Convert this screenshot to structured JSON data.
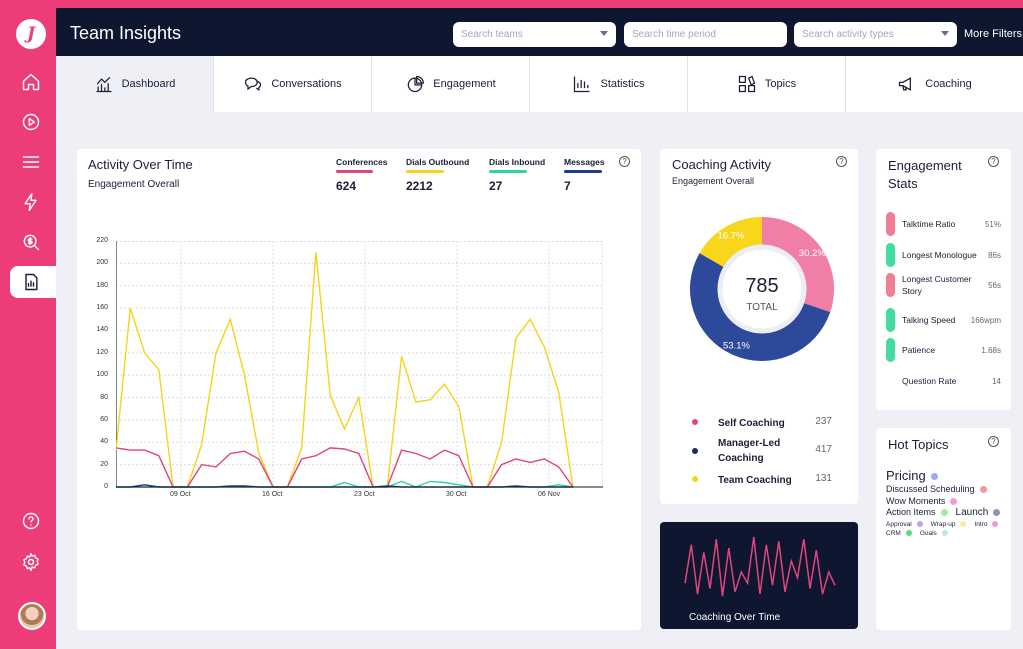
{
  "app": {
    "logo": "J",
    "title": "Team Insights"
  },
  "filters": {
    "teams": "Search teams",
    "period": "Search time period",
    "activity": "Search activity types",
    "more": "More Filters"
  },
  "tabs": [
    {
      "label": "Dashboard",
      "icon": "dashboard-icon"
    },
    {
      "label": "Conversations",
      "icon": "chat-icon"
    },
    {
      "label": "Engagement",
      "icon": "pie-icon"
    },
    {
      "label": "Statistics",
      "icon": "bar-chart-icon"
    },
    {
      "label": "Topics",
      "icon": "topics-icon"
    },
    {
      "label": "Coaching",
      "icon": "megaphone-icon"
    }
  ],
  "rail": [
    "home-icon",
    "play-icon",
    "menu-icon",
    "bolt-icon",
    "dollar-search-icon",
    "report-icon",
    "help-icon",
    "settings-icon"
  ],
  "activity": {
    "title": "Activity Over Time",
    "subtitle": "Engagement Overall",
    "metrics": [
      {
        "label": "Conferences",
        "value": "624",
        "color": "#e0457b"
      },
      {
        "label": "Dials Outbound",
        "value": "2212",
        "color": "#f5d418"
      },
      {
        "label": "Dials Inbound",
        "value": "27",
        "color": "#2dd4a4"
      },
      {
        "label": "Messages",
        "value": "7",
        "color": "#1e3a8a"
      }
    ]
  },
  "chart_data": {
    "type": "line",
    "ylim": [
      0,
      220
    ],
    "yticks": [
      "0",
      "20",
      "40",
      "60",
      "80",
      "100",
      "120",
      "140",
      "160",
      "180",
      "200",
      "220"
    ],
    "xticks": [
      "09 Oct",
      "16 Oct",
      "23 Oct",
      "30 Oct",
      "06 Nov"
    ],
    "series": [
      {
        "name": "Dials Outbound",
        "color": "#f5d418",
        "values": [
          33,
          160,
          120,
          105,
          0,
          0,
          38,
          120,
          150,
          100,
          30,
          0,
          0,
          35,
          210,
          82,
          52,
          80,
          0,
          0,
          117,
          76,
          78,
          92,
          72,
          0,
          0,
          40,
          133,
          150,
          125,
          85,
          0
        ]
      },
      {
        "name": "Conferences",
        "color": "#e0457b",
        "values": [
          35,
          33,
          33,
          28,
          0,
          0,
          20,
          18,
          30,
          32,
          25,
          0,
          0,
          25,
          28,
          35,
          34,
          30,
          0,
          0,
          33,
          30,
          25,
          33,
          28,
          0,
          0,
          20,
          25,
          22,
          25,
          18,
          0
        ]
      },
      {
        "name": "Dials Inbound",
        "color": "#2dd4a4",
        "values": [
          0,
          0,
          0,
          0,
          0,
          0,
          0,
          0,
          0,
          0,
          0,
          0,
          0,
          0,
          0,
          0,
          4,
          0,
          0,
          0,
          5,
          0,
          5,
          4,
          2,
          0,
          0,
          0,
          0,
          0,
          0,
          2,
          0
        ]
      },
      {
        "name": "Messages",
        "color": "#1e3a8a",
        "values": [
          0,
          0,
          2,
          0,
          0,
          0,
          0,
          0,
          1,
          1,
          0,
          0,
          0,
          0,
          0,
          0,
          0,
          0,
          0,
          1,
          0,
          0,
          0,
          0,
          0,
          0,
          0,
          0,
          1,
          0,
          0,
          0,
          0
        ]
      }
    ]
  },
  "coaching": {
    "title": "Coaching Activity",
    "subtitle": "Engagement Overall",
    "total": "785",
    "total_label": "TOTAL",
    "slices": [
      {
        "name": "Self Coaching",
        "count": "237",
        "pct": "30.2%",
        "value": 30.2,
        "color": "#f07ea7"
      },
      {
        "name": "Manager-Led Coaching",
        "count": "417",
        "pct": "53.1%",
        "value": 53.1,
        "color": "#2d4a9a"
      },
      {
        "name": "Team Coaching",
        "count": "131",
        "pct": "16.7%",
        "value": 16.7,
        "color": "#f8d61c"
      }
    ]
  },
  "engagement": {
    "title": "Engagement Stats",
    "stats": [
      {
        "name": "Talktime Ratio",
        "value": "51%",
        "color": "#f07e96"
      },
      {
        "name": "Longest Monologue",
        "value": "86s",
        "color": "#43dba0"
      },
      {
        "name": "Longest Customer Story",
        "value": "56s",
        "color": "#f07e96"
      },
      {
        "name": "Talking Speed",
        "value": "166wpm",
        "color": "#43dba0"
      },
      {
        "name": "Patience",
        "value": "1.68s",
        "color": "#43dba0"
      },
      {
        "name": "Question Rate",
        "value": "14",
        "color": ""
      }
    ]
  },
  "hot_topics": {
    "title": "Hot Topics",
    "rows": [
      [
        {
          "t": "Pricing",
          "c": "#a3a8f0",
          "s": 13
        }
      ],
      [
        {
          "t": "Discussed Scheduling",
          "c": "#f29a9a",
          "s": 9
        }
      ],
      [
        {
          "t": "Wow Moments",
          "c": "#f29ad6",
          "s": 9
        }
      ],
      [
        {
          "t": "Action Items",
          "c": "#a3e8a0",
          "s": 9
        },
        {
          "t": "Launch",
          "c": "#8c93b8",
          "s": 10
        }
      ],
      [
        {
          "t": "Approval",
          "c": "#c4a0f2",
          "s": 6.5
        },
        {
          "t": "Wrap-up",
          "c": "#f5ef9a",
          "s": 6.5
        },
        {
          "t": "Intro",
          "c": "#f29ad6",
          "s": 6.5
        }
      ],
      [
        {
          "t": "CRM",
          "c": "#5ed67a",
          "s": 6.5
        },
        {
          "t": "Goals",
          "c": "#b8ecd8",
          "s": 6.5
        }
      ]
    ]
  },
  "coaching_over_time": {
    "label": "Coaching Over Time",
    "color": "#e0457b",
    "values": [
      20,
      55,
      10,
      48,
      15,
      60,
      8,
      52,
      12,
      30,
      20,
      62,
      10,
      55,
      18,
      58,
      12,
      40,
      25,
      60,
      15,
      50,
      10,
      30,
      18
    ]
  }
}
